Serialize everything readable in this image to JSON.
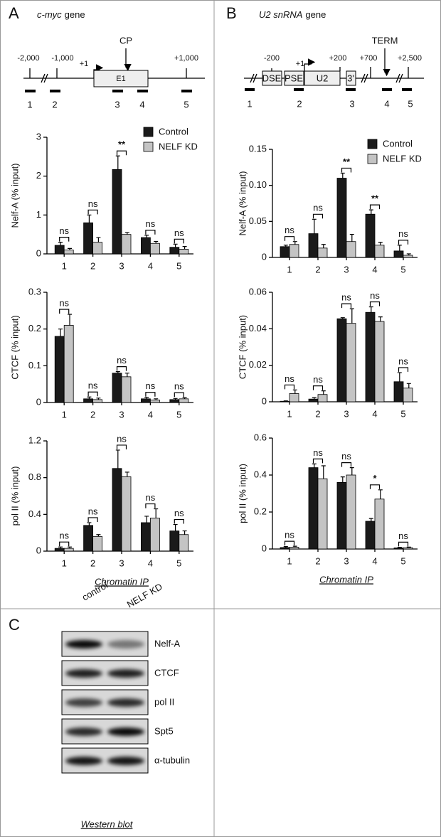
{
  "panel_labels": [
    "A",
    "B",
    "C"
  ],
  "gene_diagrams": [
    {
      "name": "c-myc",
      "suffix": "gene",
      "positions": [
        "-2,000",
        "-1,000",
        "+1",
        "+1,000"
      ],
      "marker": "CP",
      "boxes": [
        "E1"
      ],
      "primers": [
        "1",
        "2",
        "3",
        "4",
        "5"
      ]
    },
    {
      "name": "U2 snRNA",
      "suffix": "gene",
      "positions": [
        "-200",
        "+1",
        "+200",
        "+700",
        "+2,500"
      ],
      "marker": "TERM",
      "boxes": [
        "DSE",
        "PSE",
        "U2",
        "3'"
      ],
      "primers": [
        "1",
        "2",
        "3",
        "4",
        "5"
      ]
    }
  ],
  "chart_data": [
    {
      "type": "bar",
      "ylabel": "Nelf-A (% input)",
      "categories": [
        "1",
        "2",
        "3",
        "4",
        "5"
      ],
      "ylim": [
        0,
        3
      ],
      "yticks": [
        0,
        1,
        2,
        3
      ],
      "legend": "upper right",
      "series": [
        {
          "name": "Control",
          "color": "#1a1a1a",
          "values": [
            0.22,
            0.8,
            2.17,
            0.42,
            0.17
          ],
          "errors": [
            0.08,
            0.2,
            0.35,
            0.06,
            0.08
          ]
        },
        {
          "name": "NELF KD",
          "color": "#c4c4c4",
          "values": [
            0.1,
            0.3,
            0.5,
            0.27,
            0.12
          ],
          "errors": [
            0.04,
            0.12,
            0.05,
            0.05,
            0.07
          ]
        }
      ],
      "annotations": [
        "ns",
        "ns",
        "**",
        "ns",
        "ns"
      ]
    },
    {
      "type": "bar",
      "ylabel": "CTCF (% input)",
      "categories": [
        "1",
        "2",
        "3",
        "4",
        "5"
      ],
      "ylim": [
        0,
        0.3
      ],
      "yticks": [
        0,
        0.1,
        0.2,
        0.3
      ],
      "series": [
        {
          "color": "#1a1a1a",
          "values": [
            0.18,
            0.01,
            0.08,
            0.01,
            0.008
          ],
          "errors": [
            0.02,
            0.005,
            0.004,
            0.004,
            0.003
          ]
        },
        {
          "color": "#c4c4c4",
          "values": [
            0.21,
            0.008,
            0.07,
            0.007,
            0.01
          ],
          "errors": [
            0.03,
            0.004,
            0.01,
            0.003,
            0.003
          ]
        }
      ],
      "annotations": [
        "ns",
        "ns",
        "ns",
        "ns",
        "ns"
      ]
    },
    {
      "type": "bar",
      "ylabel": "pol II (% input)",
      "xlabel": "Chromatin IP",
      "categories": [
        "1",
        "2",
        "3",
        "4",
        "5"
      ],
      "ylim": [
        0,
        1.2
      ],
      "yticks": [
        0,
        0.4,
        0.8,
        1.2
      ],
      "series": [
        {
          "color": "#1a1a1a",
          "values": [
            0.03,
            0.28,
            0.9,
            0.31,
            0.22
          ],
          "errors": [
            0.015,
            0.03,
            0.2,
            0.07,
            0.07
          ]
        },
        {
          "color": "#c4c4c4",
          "values": [
            0.03,
            0.16,
            0.81,
            0.36,
            0.18
          ],
          "errors": [
            0.015,
            0.02,
            0.05,
            0.1,
            0.04
          ]
        }
      ],
      "annotations": [
        "ns",
        "ns",
        "ns",
        "ns",
        "ns"
      ]
    },
    {
      "type": "bar",
      "ylabel": "Nelf-A (% input)",
      "categories": [
        "1",
        "2",
        "3",
        "4",
        "5"
      ],
      "ylim": [
        0,
        0.15
      ],
      "yticks": [
        0,
        0.05,
        {
          "value": 0.1,
          "label": "0.10"
        },
        0.15
      ],
      "legend": "upper right",
      "series": [
        {
          "name": "Control",
          "color": "#1a1a1a",
          "values": [
            0.015,
            0.033,
            0.11,
            0.06,
            0.009
          ],
          "errors": [
            0.002,
            0.02,
            0.007,
            0.006,
            0.008
          ]
        },
        {
          "name": "NELF KD",
          "color": "#c4c4c4",
          "values": [
            0.018,
            0.013,
            0.022,
            0.017,
            0.003
          ],
          "errors": [
            0.004,
            0.005,
            0.01,
            0.004,
            0.002
          ]
        }
      ],
      "annotations": [
        "ns",
        "ns",
        "**",
        "**",
        "ns"
      ]
    },
    {
      "type": "bar",
      "ylabel": "CTCF (% input)",
      "categories": [
        "1",
        "2",
        "3",
        "4",
        "5"
      ],
      "ylim": [
        0,
        0.06
      ],
      "yticks": [
        0,
        0.02,
        0.04,
        0.06
      ],
      "series": [
        {
          "color": "#1a1a1a",
          "values": [
            0.0003,
            0.0015,
            0.0455,
            0.049,
            0.011
          ],
          "errors": [
            0.0002,
            0.0008,
            0.0006,
            0.003,
            0.005
          ]
        },
        {
          "color": "#c4c4c4",
          "values": [
            0.0045,
            0.004,
            0.043,
            0.044,
            0.0075
          ],
          "errors": [
            0.002,
            0.002,
            0.008,
            0.0025,
            0.0025
          ]
        }
      ],
      "annotations": [
        "ns",
        "ns",
        "ns",
        "ns",
        "ns"
      ]
    },
    {
      "type": "bar",
      "ylabel": "pol II (% input)",
      "xlabel": "Chromatin IP",
      "categories": [
        "1",
        "2",
        "3",
        "4",
        "5"
      ],
      "ylim": [
        0,
        0.6
      ],
      "yticks": [
        0,
        0.2,
        0.4,
        0.6
      ],
      "series": [
        {
          "color": "#1a1a1a",
          "values": [
            0.008,
            0.44,
            0.36,
            0.15,
            0.006
          ],
          "errors": [
            0.005,
            0.02,
            0.03,
            0.015,
            0.003
          ]
        },
        {
          "color": "#c4c4c4",
          "values": [
            0.01,
            0.38,
            0.4,
            0.27,
            0.007
          ],
          "errors": [
            0.005,
            0.07,
            0.04,
            0.05,
            0.003
          ]
        }
      ],
      "annotations": [
        "ns",
        "ns",
        "ns",
        "*",
        "ns"
      ]
    }
  ],
  "western_blot": {
    "lanes": [
      "control",
      "NELF KD"
    ],
    "rows": [
      "Nelf-A",
      "CTCF",
      "pol II",
      "Spt5",
      "α-tubulin"
    ],
    "caption": "Western blot"
  }
}
